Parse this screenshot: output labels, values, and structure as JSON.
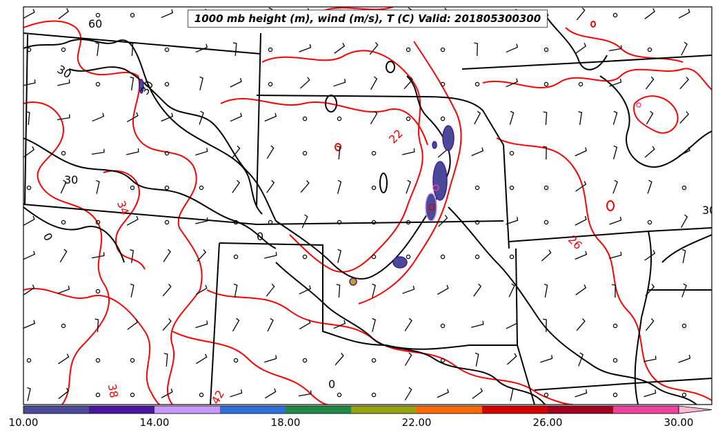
{
  "title": "1000 mb height (m), wind (m/s), T (C) Valid: 201805300300",
  "colors": {
    "height_contour": "#000000",
    "temperature_contour": "#ff0000",
    "state_border": "#000000",
    "frame": "#000000"
  },
  "contour_labels": {
    "height": [
      "60",
      "30",
      "30",
      "30",
      "0",
      "0",
      "0"
    ],
    "temperature": [
      "22",
      "26",
      "30",
      "34",
      "38",
      "42"
    ]
  },
  "colorbar": {
    "segments": [
      "#4a4a98",
      "#4b17a0",
      "#c79afa",
      "#2f6fdc",
      "#1f8a45",
      "#9aa30f",
      "#ff6a00",
      "#d40000",
      "#a0001e",
      "#f040a0"
    ],
    "extend_color": "#ffb6d8",
    "tick_labels": [
      "10.00",
      "14.00",
      "18.00",
      "22.00",
      "26.00",
      "30.00"
    ]
  }
}
